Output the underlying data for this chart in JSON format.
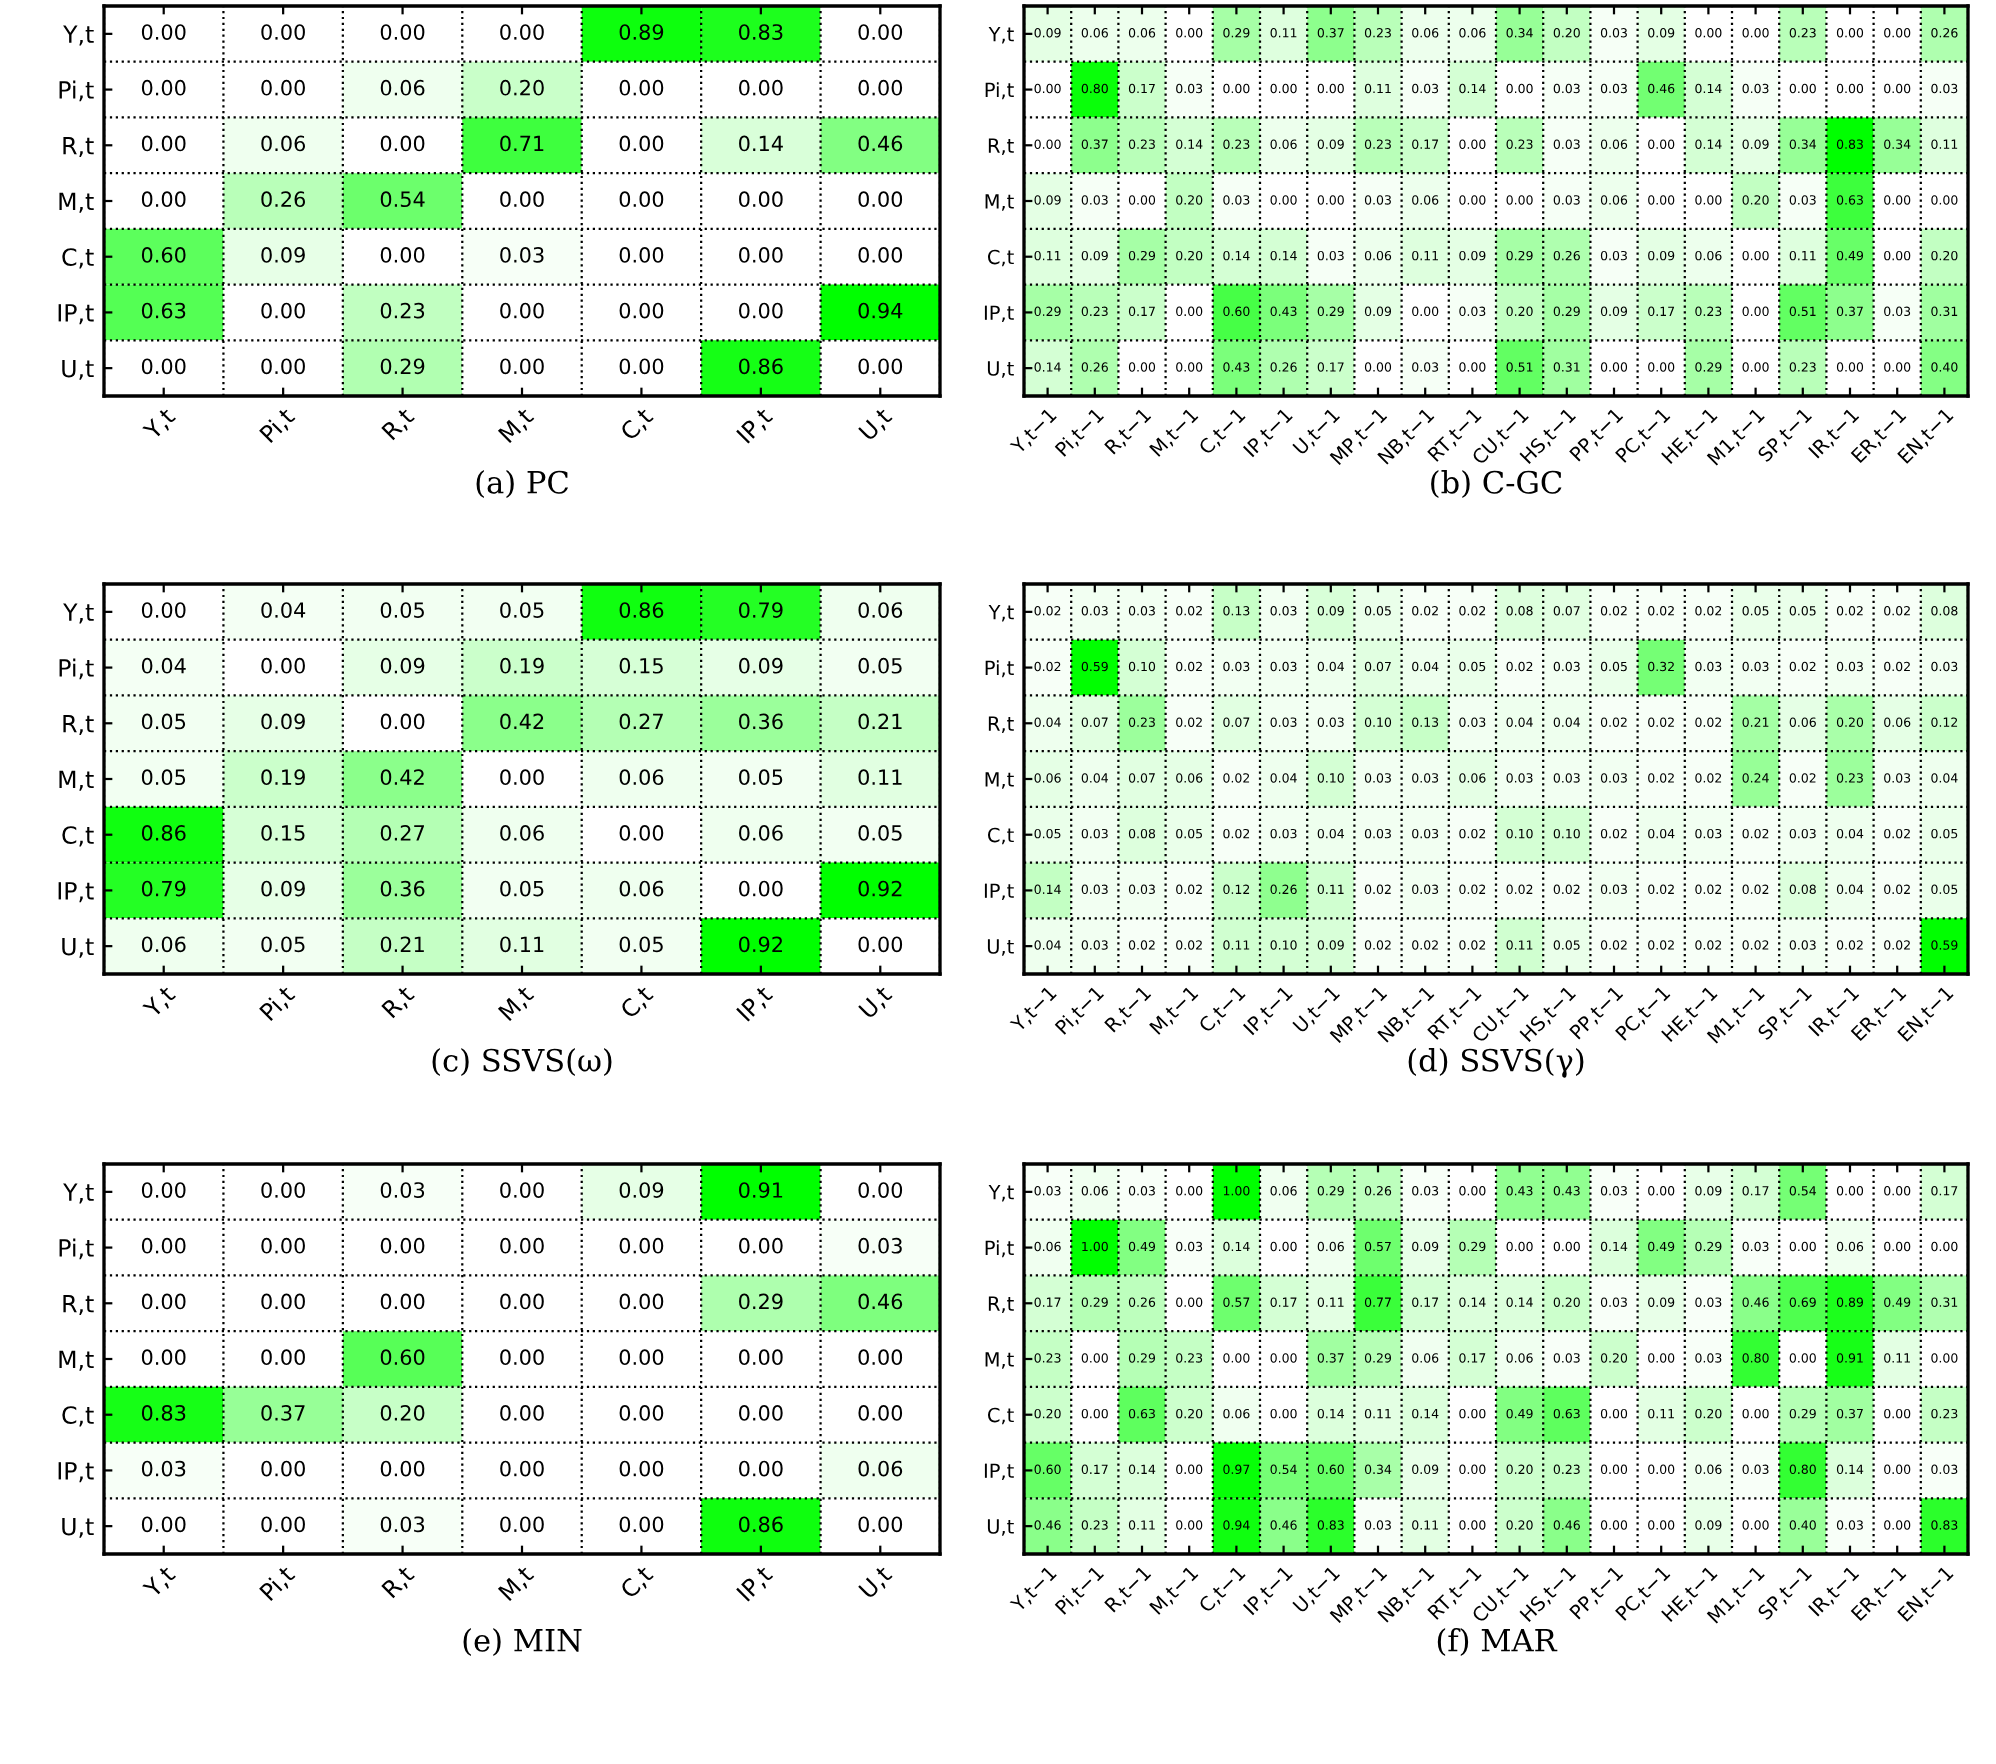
{
  "chart_data": [
    {
      "type": "heatmap",
      "title": "(a) PC",
      "data_labels": true,
      "grid": true,
      "categories": [
        "Y,t",
        "Pi,t",
        "R,t",
        "M,t",
        "C,t",
        "IP,t",
        "U,t"
      ],
      "y_categories": [
        "Y,t",
        "Pi,t",
        "R,t",
        "M,t",
        "C,t",
        "IP,t",
        "U,t"
      ],
      "cells": [
        [
          0.0,
          0.0,
          0.0,
          0.0,
          0.89,
          0.83,
          0.0
        ],
        [
          0.0,
          0.0,
          0.06,
          0.2,
          0.0,
          0.0,
          0.0
        ],
        [
          0.0,
          0.06,
          0.0,
          0.71,
          0.0,
          0.14,
          0.46
        ],
        [
          0.0,
          0.26,
          0.54,
          0.0,
          0.0,
          0.0,
          0.0
        ],
        [
          0.6,
          0.09,
          0.0,
          0.03,
          0.0,
          0.0,
          0.0
        ],
        [
          0.63,
          0.0,
          0.23,
          0.0,
          0.0,
          0.0,
          0.94
        ],
        [
          0.0,
          0.0,
          0.29,
          0.0,
          0.0,
          0.86,
          0.0
        ]
      ],
      "cell_labels": [
        [
          "0.00",
          "0.00",
          "0.00",
          "0.00",
          "0.89",
          "0.83",
          "0.00"
        ],
        [
          "0.00",
          "0.00",
          "0.06",
          "0.20",
          "0.00",
          "0.00",
          "0.00"
        ],
        [
          "0.00",
          "0.06",
          "0.00",
          "0.71",
          "0.00",
          "0.14",
          "0.46"
        ],
        [
          "0.00",
          "0.26",
          "0.54",
          "0.00",
          "0.00",
          "0.00",
          "0.00"
        ],
        [
          "0.60",
          "0.09",
          "0.00",
          "0.03",
          "0.00",
          "0.00",
          "0.00"
        ],
        [
          "0.63",
          "0.00",
          "0.23",
          "0.00",
          "0.00",
          "0.00",
          "0.94"
        ],
        [
          "0.00",
          "0.00",
          "0.29",
          "0.00",
          "0.00",
          "0.86",
          "0.00"
        ]
      ]
    },
    {
      "type": "heatmap",
      "title": "(b) C-GC",
      "data_labels": true,
      "grid": true,
      "categories": [
        "Y,t−1",
        "Pi,t−1",
        "R,t−1",
        "M,t−1",
        "C,t−1",
        "IP,t−1",
        "U,t−1",
        "MP,t−1",
        "NB,t−1",
        "RT,t−1",
        "CU,t−1",
        "HS,t−1",
        "PP,t−1",
        "PC,t−1",
        "HE,t−1",
        "M1,t−1",
        "SP,t−1",
        "IR,t−1",
        "ER,t−1",
        "EN,t−1"
      ],
      "y_categories": [
        "Y,t",
        "Pi,t",
        "R,t",
        "M,t",
        "C,t",
        "IP,t",
        "U,t"
      ],
      "cells": [
        [
          0.09,
          0.06,
          0.06,
          0.0,
          0.29,
          0.11,
          0.37,
          0.23,
          0.06,
          0.06,
          0.34,
          0.2,
          0.03,
          0.09,
          0.0,
          0.0,
          0.23,
          0.0,
          0.0,
          0.26
        ],
        [
          0.0,
          0.8,
          0.17,
          0.03,
          0.0,
          0.0,
          0.0,
          0.11,
          0.03,
          0.14,
          0.0,
          0.03,
          0.03,
          0.46,
          0.14,
          0.03,
          0.0,
          0.0,
          0.0,
          0.03
        ],
        [
          0.0,
          0.37,
          0.23,
          0.14,
          0.23,
          0.06,
          0.09,
          0.23,
          0.17,
          0.0,
          0.23,
          0.03,
          0.06,
          0.0,
          0.14,
          0.09,
          0.34,
          0.83,
          0.34,
          0.11
        ],
        [
          0.09,
          0.03,
          0.0,
          0.2,
          0.03,
          0.0,
          0.0,
          0.03,
          0.06,
          0.0,
          0.0,
          0.03,
          0.06,
          0.0,
          0.0,
          0.2,
          0.03,
          0.63,
          0.0,
          0.0
        ],
        [
          0.11,
          0.09,
          0.29,
          0.2,
          0.14,
          0.14,
          0.03,
          0.06,
          0.11,
          0.09,
          0.29,
          0.26,
          0.03,
          0.09,
          0.06,
          0.0,
          0.11,
          0.49,
          0.0,
          0.2
        ],
        [
          0.29,
          0.23,
          0.17,
          0.0,
          0.6,
          0.43,
          0.29,
          0.09,
          0.0,
          0.03,
          0.2,
          0.29,
          0.09,
          0.17,
          0.23,
          0.0,
          0.51,
          0.37,
          0.03,
          0.31
        ],
        [
          0.14,
          0.26,
          0.0,
          0.0,
          0.43,
          0.26,
          0.17,
          0.0,
          0.03,
          0.0,
          0.51,
          0.31,
          0.0,
          0.0,
          0.29,
          0.0,
          0.23,
          0.0,
          0.0,
          0.4
        ]
      ],
      "cell_labels": [
        [
          "0.09",
          "0.06",
          "0.06",
          "0.00",
          "0.29",
          "0.11",
          "0.37",
          "0.23",
          "0.06",
          "0.06",
          "0.34",
          "0.20",
          "0.03",
          "0.09",
          "0.00",
          "0.00",
          "0.23",
          "0.00",
          "0.00",
          "0.26"
        ],
        [
          "0.00",
          "0.80",
          "0.17",
          "0.03",
          "0.00",
          "0.00",
          "0.00",
          "0.11",
          "0.03",
          "0.14",
          "0.00",
          "0.03",
          "0.03",
          "0.46",
          "0.14",
          "0.03",
          "0.00",
          "0.00",
          "0.00",
          "0.03"
        ],
        [
          "0.00",
          "0.37",
          "0.23",
          "0.14",
          "0.23",
          "0.06",
          "0.09",
          "0.23",
          "0.17",
          "0.00",
          "0.23",
          "0.03",
          "0.06",
          "0.00",
          "0.14",
          "0.09",
          "0.34",
          "0.83",
          "0.34",
          "0.11"
        ],
        [
          "0.09",
          "0.03",
          "0.00",
          "0.20",
          "0.03",
          "0.00",
          "0.00",
          "0.03",
          "0.06",
          "0.00",
          "0.00",
          "0.03",
          "0.06",
          "0.00",
          "0.00",
          "0.20",
          "0.03",
          "0.63",
          "0.00",
          "0.00"
        ],
        [
          "0.11",
          "0.09",
          "0.29",
          "0.20",
          "0.14",
          "0.14",
          "0.03",
          "0.06",
          "0.11",
          "0.09",
          "0.29",
          "0.26",
          "0.03",
          "0.09",
          "0.06",
          "0.00",
          "0.11",
          "0.49",
          "0.00",
          "0.20"
        ],
        [
          "0.29",
          "0.23",
          "0.17",
          "0.00",
          "0.60",
          "0.43",
          "0.29",
          "0.09",
          "0.00",
          "0.03",
          "0.20",
          "0.29",
          "0.09",
          "0.17",
          "0.23",
          "0.00",
          "0.51",
          "0.37",
          "0.03",
          "0.31"
        ],
        [
          "0.14",
          "0.26",
          "0.00",
          "0.00",
          "0.43",
          "0.26",
          "0.17",
          "0.00",
          "0.03",
          "0.00",
          "0.51",
          "0.31",
          "0.00",
          "0.00",
          "0.29",
          "0.00",
          "0.23",
          "0.00",
          "0.00",
          "0.40"
        ]
      ]
    },
    {
      "type": "heatmap",
      "title": "(c) SSVS(ω)",
      "data_labels": true,
      "grid": true,
      "categories": [
        "Y,t",
        "Pi,t",
        "R,t",
        "M,t",
        "C,t",
        "IP,t",
        "U,t"
      ],
      "y_categories": [
        "Y,t",
        "Pi,t",
        "R,t",
        "M,t",
        "C,t",
        "IP,t",
        "U,t"
      ],
      "cells": [
        [
          0.0,
          0.04,
          0.05,
          0.05,
          0.86,
          0.79,
          0.06
        ],
        [
          0.04,
          0.0,
          0.09,
          0.19,
          0.15,
          0.09,
          0.05
        ],
        [
          0.05,
          0.09,
          0.0,
          0.42,
          0.27,
          0.36,
          0.21
        ],
        [
          0.05,
          0.19,
          0.42,
          0.0,
          0.06,
          0.05,
          0.11
        ],
        [
          0.86,
          0.15,
          0.27,
          0.06,
          0.0,
          0.06,
          0.05
        ],
        [
          0.79,
          0.09,
          0.36,
          0.05,
          0.06,
          0.0,
          0.92
        ],
        [
          0.06,
          0.05,
          0.21,
          0.11,
          0.05,
          0.92,
          0.0
        ]
      ],
      "cell_labels": [
        [
          "0.00",
          "0.04",
          "0.05",
          "0.05",
          "0.86",
          "0.79",
          "0.06"
        ],
        [
          "0.04",
          "0.00",
          "0.09",
          "0.19",
          "0.15",
          "0.09",
          "0.05"
        ],
        [
          "0.05",
          "0.09",
          "0.00",
          "0.42",
          "0.27",
          "0.36",
          "0.21"
        ],
        [
          "0.05",
          "0.19",
          "0.42",
          "0.00",
          "0.06",
          "0.05",
          "0.11"
        ],
        [
          "0.86",
          "0.15",
          "0.27",
          "0.06",
          "0.00",
          "0.06",
          "0.05"
        ],
        [
          "0.79",
          "0.09",
          "0.36",
          "0.05",
          "0.06",
          "0.00",
          "0.92"
        ],
        [
          "0.06",
          "0.05",
          "0.21",
          "0.11",
          "0.05",
          "0.92",
          "0.00"
        ]
      ]
    },
    {
      "type": "heatmap",
      "title": "(d) SSVS(γ)",
      "data_labels": true,
      "grid": true,
      "categories": [
        "Y,t−1",
        "Pi,t−1",
        "R,t−1",
        "M,t−1",
        "C,t−1",
        "IP,t−1",
        "U,t−1",
        "MP,t−1",
        "NB,t−1",
        "RT,t−1",
        "CU,t−1",
        "HS,t−1",
        "PP,t−1",
        "PC,t−1",
        "HE,t−1",
        "M1,t−1",
        "SP,t−1",
        "IR,t−1",
        "ER,t−1",
        "EN,t−1"
      ],
      "y_categories": [
        "Y,t",
        "Pi,t",
        "R,t",
        "M,t",
        "C,t",
        "IP,t",
        "U,t"
      ],
      "cells": [
        [
          0.02,
          0.03,
          0.03,
          0.02,
          0.13,
          0.03,
          0.09,
          0.05,
          0.02,
          0.02,
          0.08,
          0.07,
          0.02,
          0.02,
          0.02,
          0.05,
          0.05,
          0.02,
          0.02,
          0.08
        ],
        [
          0.02,
          0.59,
          0.1,
          0.02,
          0.03,
          0.03,
          0.04,
          0.07,
          0.04,
          0.05,
          0.02,
          0.03,
          0.05,
          0.32,
          0.03,
          0.03,
          0.02,
          0.03,
          0.02,
          0.03
        ],
        [
          0.04,
          0.07,
          0.23,
          0.02,
          0.07,
          0.03,
          0.03,
          0.1,
          0.13,
          0.03,
          0.04,
          0.04,
          0.02,
          0.02,
          0.02,
          0.21,
          0.06,
          0.2,
          0.06,
          0.12
        ],
        [
          0.06,
          0.04,
          0.07,
          0.06,
          0.02,
          0.04,
          0.1,
          0.03,
          0.03,
          0.06,
          0.03,
          0.03,
          0.03,
          0.02,
          0.02,
          0.24,
          0.02,
          0.23,
          0.03,
          0.04
        ],
        [
          0.05,
          0.03,
          0.08,
          0.05,
          0.02,
          0.03,
          0.04,
          0.03,
          0.03,
          0.02,
          0.1,
          0.1,
          0.02,
          0.04,
          0.03,
          0.02,
          0.03,
          0.04,
          0.02,
          0.05
        ],
        [
          0.14,
          0.03,
          0.03,
          0.02,
          0.12,
          0.26,
          0.11,
          0.02,
          0.03,
          0.02,
          0.02,
          0.02,
          0.03,
          0.02,
          0.02,
          0.02,
          0.08,
          0.04,
          0.02,
          0.05
        ],
        [
          0.04,
          0.03,
          0.02,
          0.02,
          0.11,
          0.1,
          0.09,
          0.02,
          0.02,
          0.02,
          0.11,
          0.05,
          0.02,
          0.02,
          0.02,
          0.02,
          0.03,
          0.02,
          0.02,
          0.59
        ]
      ],
      "cell_labels": [
        [
          "0.02",
          "0.03",
          "0.03",
          "0.02",
          "0.13",
          "0.03",
          "0.09",
          "0.05",
          "0.02",
          "0.02",
          "0.08",
          "0.07",
          "0.02",
          "0.02",
          "0.02",
          "0.05",
          "0.05",
          "0.02",
          "0.02",
          "0.08"
        ],
        [
          "0.02",
          "0.59",
          "0.10",
          "0.02",
          "0.03",
          "0.03",
          "0.04",
          "0.07",
          "0.04",
          "0.05",
          "0.02",
          "0.03",
          "0.05",
          "0.32",
          "0.03",
          "0.03",
          "0.02",
          "0.03",
          "0.02",
          "0.03"
        ],
        [
          "0.04",
          "0.07",
          "0.23",
          "0.02",
          "0.07",
          "0.03",
          "0.03",
          "0.10",
          "0.13",
          "0.03",
          "0.04",
          "0.04",
          "0.02",
          "0.02",
          "0.02",
          "0.21",
          "0.06",
          "0.20",
          "0.06",
          "0.12"
        ],
        [
          "0.06",
          "0.04",
          "0.07",
          "0.06",
          "0.02",
          "0.04",
          "0.10",
          "0.03",
          "0.03",
          "0.06",
          "0.03",
          "0.03",
          "0.03",
          "0.02",
          "0.02",
          "0.24",
          "0.02",
          "0.23",
          "0.03",
          "0.04"
        ],
        [
          "0.05",
          "0.03",
          "0.08",
          "0.05",
          "0.02",
          "0.03",
          "0.04",
          "0.03",
          "0.03",
          "0.02",
          "0.10",
          "0.10",
          "0.02",
          "0.04",
          "0.03",
          "0.02",
          "0.03",
          "0.04",
          "0.02",
          "0.05"
        ],
        [
          "0.14",
          "0.03",
          "0.03",
          "0.02",
          "0.12",
          "0.26",
          "0.11",
          "0.02",
          "0.03",
          "0.02",
          "0.02",
          "0.02",
          "0.03",
          "0.02",
          "0.02",
          "0.02",
          "0.08",
          "0.04",
          "0.02",
          "0.05"
        ],
        [
          "0.04",
          "0.03",
          "0.02",
          "0.02",
          "0.11",
          "0.10",
          "0.09",
          "0.02",
          "0.02",
          "0.02",
          "0.11",
          "0.05",
          "0.02",
          "0.02",
          "0.02",
          "0.02",
          "0.03",
          "0.02",
          "0.02",
          "0.59"
        ]
      ]
    },
    {
      "type": "heatmap",
      "title": "(e) MIN",
      "data_labels": true,
      "grid": true,
      "categories": [
        "Y,t",
        "Pi,t",
        "R,t",
        "M,t",
        "C,t",
        "IP,t",
        "U,t"
      ],
      "y_categories": [
        "Y,t",
        "Pi,t",
        "R,t",
        "M,t",
        "C,t",
        "IP,t",
        "U,t"
      ],
      "cells": [
        [
          0.0,
          0.0,
          0.03,
          0.0,
          0.09,
          0.91,
          0.0
        ],
        [
          0.0,
          0.0,
          0.0,
          0.0,
          0.0,
          0.0,
          0.03
        ],
        [
          0.0,
          0.0,
          0.0,
          0.0,
          0.0,
          0.29,
          0.46
        ],
        [
          0.0,
          0.0,
          0.6,
          0.0,
          0.0,
          0.0,
          0.0
        ],
        [
          0.83,
          0.37,
          0.2,
          0.0,
          0.0,
          0.0,
          0.0
        ],
        [
          0.03,
          0.0,
          0.0,
          0.0,
          0.0,
          0.0,
          0.06
        ],
        [
          0.0,
          0.0,
          0.03,
          0.0,
          0.0,
          0.86,
          0.0
        ]
      ],
      "cell_labels": [
        [
          "0.00",
          "0.00",
          "0.03",
          "0.00",
          "0.09",
          "0.91",
          "0.00"
        ],
        [
          "0.00",
          "0.00",
          "0.00",
          "0.00",
          "0.00",
          "0.00",
          "0.03"
        ],
        [
          "0.00",
          "0.00",
          "0.00",
          "0.00",
          "0.00",
          "0.29",
          "0.46"
        ],
        [
          "0.00",
          "0.00",
          "0.60",
          "0.00",
          "0.00",
          "0.00",
          "0.00"
        ],
        [
          "0.83",
          "0.37",
          "0.20",
          "0.00",
          "0.00",
          "0.00",
          "0.00"
        ],
        [
          "0.03",
          "0.00",
          "0.00",
          "0.00",
          "0.00",
          "0.00",
          "0.06"
        ],
        [
          "0.00",
          "0.00",
          "0.03",
          "0.00",
          "0.00",
          "0.86",
          "0.00"
        ]
      ]
    },
    {
      "type": "heatmap",
      "title": "(f) MAR",
      "data_labels": true,
      "grid": true,
      "categories": [
        "Y,t−1",
        "Pi,t−1",
        "R,t−1",
        "M,t−1",
        "C,t−1",
        "IP,t−1",
        "U,t−1",
        "MP,t−1",
        "NB,t−1",
        "RT,t−1",
        "CU,t−1",
        "HS,t−1",
        "PP,t−1",
        "PC,t−1",
        "HE,t−1",
        "M1,t−1",
        "SP,t−1",
        "IR,t−1",
        "ER,t−1",
        "EN,t−1"
      ],
      "y_categories": [
        "Y,t",
        "Pi,t",
        "R,t",
        "M,t",
        "C,t",
        "IP,t",
        "U,t"
      ],
      "cells": [
        [
          0.03,
          0.06,
          0.03,
          0.0,
          1.0,
          0.06,
          0.29,
          0.26,
          0.03,
          0.0,
          0.43,
          0.43,
          0.03,
          0.0,
          0.09,
          0.17,
          0.54,
          0.0,
          0.0,
          0.17
        ],
        [
          0.06,
          1.0,
          0.49,
          0.03,
          0.14,
          0.0,
          0.06,
          0.57,
          0.09,
          0.29,
          0.0,
          0.0,
          0.14,
          0.49,
          0.29,
          0.03,
          0.0,
          0.06,
          0.0,
          0.0
        ],
        [
          0.17,
          0.29,
          0.26,
          0.0,
          0.57,
          0.17,
          0.11,
          0.77,
          0.17,
          0.14,
          0.14,
          0.2,
          0.03,
          0.09,
          0.03,
          0.46,
          0.69,
          0.89,
          0.49,
          0.31
        ],
        [
          0.23,
          0.0,
          0.29,
          0.23,
          0.0,
          0.0,
          0.37,
          0.29,
          0.06,
          0.17,
          0.06,
          0.03,
          0.2,
          0.0,
          0.03,
          0.8,
          0.0,
          0.91,
          0.11,
          0.0
        ],
        [
          0.2,
          0.0,
          0.63,
          0.2,
          0.06,
          0.0,
          0.14,
          0.11,
          0.14,
          0.0,
          0.49,
          0.63,
          0.0,
          0.11,
          0.2,
          0.0,
          0.29,
          0.37,
          0.0,
          0.23
        ],
        [
          0.6,
          0.17,
          0.14,
          0.0,
          0.97,
          0.54,
          0.6,
          0.34,
          0.09,
          0.0,
          0.2,
          0.23,
          0.0,
          0.0,
          0.06,
          0.03,
          0.8,
          0.14,
          0.0,
          0.03
        ],
        [
          0.46,
          0.23,
          0.11,
          0.0,
          0.94,
          0.46,
          0.83,
          0.03,
          0.11,
          0.0,
          0.2,
          0.46,
          0.0,
          0.0,
          0.09,
          0.0,
          0.4,
          0.03,
          0.0,
          0.83
        ]
      ],
      "cell_labels": [
        [
          "0.03",
          "0.06",
          "0.03",
          "0.00",
          "1.00",
          "0.06",
          "0.29",
          "0.26",
          "0.03",
          "0.00",
          "0.43",
          "0.43",
          "0.03",
          "0.00",
          "0.09",
          "0.17",
          "0.54",
          "0.00",
          "0.00",
          "0.17"
        ],
        [
          "0.06",
          "1.00",
          "0.49",
          "0.03",
          "0.14",
          "0.00",
          "0.06",
          "0.57",
          "0.09",
          "0.29",
          "0.00",
          "0.00",
          "0.14",
          "0.49",
          "0.29",
          "0.03",
          "0.00",
          "0.06",
          "0.00",
          "0.00"
        ],
        [
          "0.17",
          "0.29",
          "0.26",
          "0.00",
          "0.57",
          "0.17",
          "0.11",
          "0.77",
          "0.17",
          "0.14",
          "0.14",
          "0.20",
          "0.03",
          "0.09",
          "0.03",
          "0.46",
          "0.69",
          "0.89",
          "0.49",
          "0.31"
        ],
        [
          "0.23",
          "0.00",
          "0.29",
          "0.23",
          "0.00",
          "0.00",
          "0.37",
          "0.29",
          "0.06",
          "0.17",
          "0.06",
          "0.03",
          "0.20",
          "0.00",
          "0.03",
          "0.80",
          "0.00",
          "0.91",
          "0.11",
          "0.00"
        ],
        [
          "0.20",
          "0.00",
          "0.63",
          "0.20",
          "0.06",
          "0.00",
          "0.14",
          "0.11",
          "0.14",
          "0.00",
          "0.49",
          "0.63",
          "0.00",
          "0.11",
          "0.20",
          "0.00",
          "0.29",
          "0.37",
          "0.00",
          "0.23"
        ],
        [
          "0.60",
          "0.17",
          "0.14",
          "0.00",
          "0.97",
          "0.54",
          "0.60",
          "0.34",
          "0.09",
          "0.00",
          "0.20",
          "0.23",
          "0.00",
          "0.00",
          "0.06",
          "0.03",
          "0.80",
          "0.14",
          "0.00",
          "0.03"
        ],
        [
          "0.46",
          "0.23",
          "0.11",
          "0.00",
          "0.94",
          "0.46",
          "0.83",
          "0.03",
          "0.11",
          "0.00",
          "0.20",
          "0.46",
          "0.00",
          "0.00",
          "0.09",
          "0.00",
          "0.40",
          "0.03",
          "0.00",
          "0.83"
        ]
      ]
    }
  ]
}
